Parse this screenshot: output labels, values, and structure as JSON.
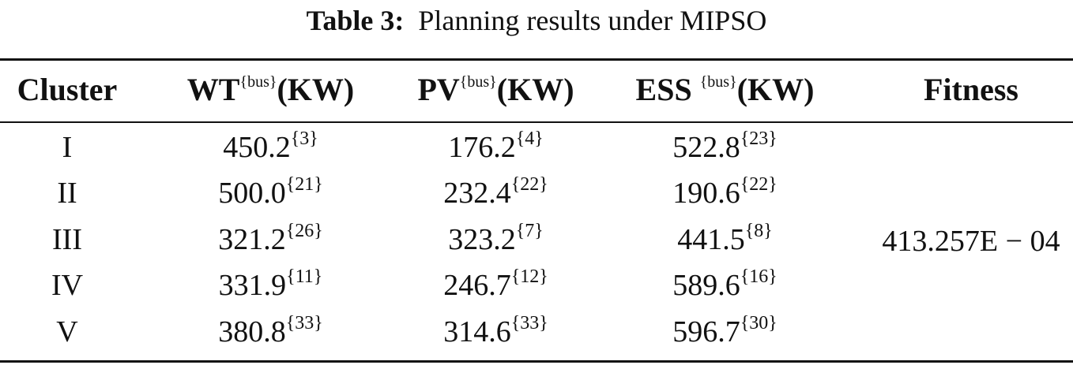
{
  "caption": {
    "label": "Table 3:",
    "text": "Planning results under MIPSO"
  },
  "table": {
    "headers": [
      {
        "main": "Cluster",
        "sup": "",
        "unit": ""
      },
      {
        "main": "WT",
        "sup": "{bus}",
        "unit": "(KW)"
      },
      {
        "main": "PV",
        "sup": "{bus}",
        "unit": "(KW)"
      },
      {
        "main": "ESS ",
        "sup": "{bus}",
        "unit": "(KW)"
      },
      {
        "main": "Fitness",
        "sup": "",
        "unit": ""
      }
    ],
    "rows": [
      {
        "cluster": "I",
        "wt": {
          "v": "450.2",
          "bus": "{3}"
        },
        "pv": {
          "v": "176.2",
          "bus": "{4}"
        },
        "ess": {
          "v": "522.8",
          "bus": "{23}"
        }
      },
      {
        "cluster": "II",
        "wt": {
          "v": "500.0",
          "bus": "{21}"
        },
        "pv": {
          "v": "232.4",
          "bus": "{22}"
        },
        "ess": {
          "v": "190.6",
          "bus": "{22}"
        }
      },
      {
        "cluster": "III",
        "wt": {
          "v": "321.2",
          "bus": "{26}"
        },
        "pv": {
          "v": "323.2",
          "bus": "{7}"
        },
        "ess": {
          "v": "441.5",
          "bus": "{8}"
        }
      },
      {
        "cluster": "IV",
        "wt": {
          "v": "331.9",
          "bus": "{11}"
        },
        "pv": {
          "v": "246.7",
          "bus": "{12}"
        },
        "ess": {
          "v": "589.6",
          "bus": "{16}"
        }
      },
      {
        "cluster": "V",
        "wt": {
          "v": "380.8",
          "bus": "{33}"
        },
        "pv": {
          "v": "314.6",
          "bus": "{33}"
        },
        "ess": {
          "v": "596.7",
          "bus": "{30}"
        }
      }
    ],
    "fitness": "413.257E − 04"
  }
}
